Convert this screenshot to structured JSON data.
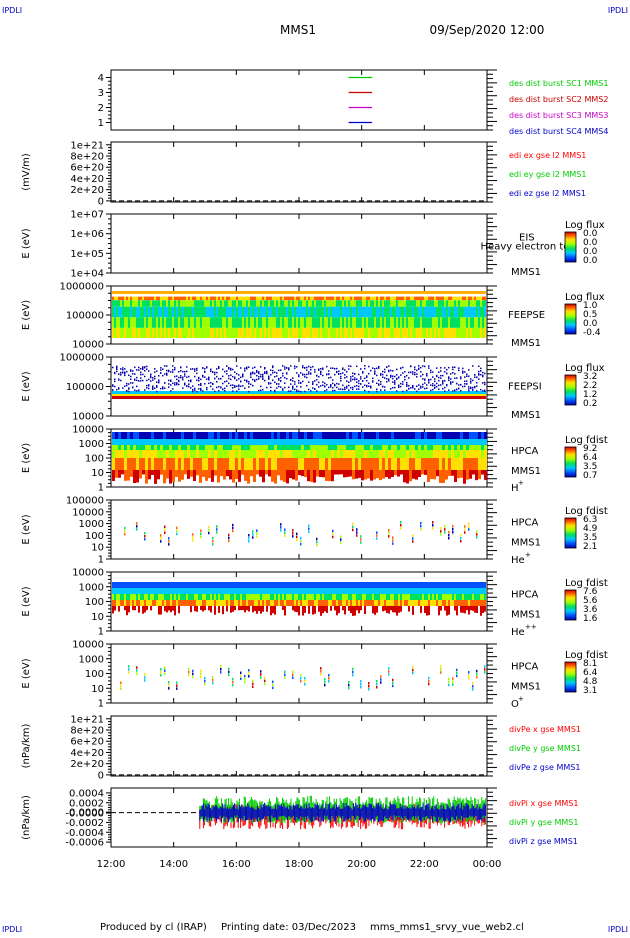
{
  "header": {
    "corner_text": "IPDLI",
    "spacecraft": "MMS1",
    "datetime": "09/Sep/2020 12:00"
  },
  "footer": {
    "produced_by": "Produced by cl (IRAP)",
    "printing_date": "Printing date: 03/Dec/2023",
    "filename": "mms_mms1_srvy_vue_web2.cl"
  },
  "colors": {
    "red": "#ff0000",
    "green": "#00cc00",
    "magenta": "#dd00dd",
    "blue": "#0000cc",
    "sc1": "#00cc00",
    "sc2": "#cc0000",
    "sc3": "#cc00cc",
    "sc4": "#0000cc"
  },
  "chart_data": {
    "type": "multi-panel",
    "x_tick_labels": [
      "12:00",
      "14:00",
      "16:00",
      "18:00",
      "20:00",
      "22:00",
      "00:00"
    ],
    "x_range": [
      "12:00",
      "00:00"
    ],
    "panels": [
      {
        "id": "burst",
        "type": "line",
        "ylabel": "",
        "ytick_labels": [
          "1",
          "2",
          "3",
          "4"
        ],
        "ylim": [
          0.5,
          4.5
        ],
        "series": [
          {
            "name": "des dist burst SC1 MMS1",
            "value": 4,
            "color": "#00cc00"
          },
          {
            "name": "des dist burst SC2 MMS2",
            "value": 3,
            "color": "#cc0000"
          },
          {
            "name": "des dist burst SC3 MMS3",
            "value": 2,
            "color": "#cc00cc"
          },
          {
            "name": "des dist burst SC4 MMS4",
            "value": 1,
            "color": "#0000cc"
          }
        ],
        "x_segment": [
          "19:35",
          "20:20"
        ]
      },
      {
        "id": "edi",
        "type": "line",
        "ylabel": "(mV/m)",
        "ytick_labels": [
          "0",
          "2e+20",
          "4e+20",
          "6e+20",
          "8e+20",
          "1e+21"
        ],
        "ylim": [
          -2e+19,
          1.05e+21
        ],
        "legend": [
          "edi ex gse l2 MMS1",
          "edi ey gse l2 MMS1",
          "edi ez gse l2 MMS1"
        ],
        "legend_colors": [
          "#ff0000",
          "#00cc00",
          "#0000cc"
        ]
      },
      {
        "id": "eis",
        "type": "heatmap",
        "ylabel": "E (eV)",
        "ytick_labels": [
          "1e+04",
          "1e+05",
          "1e+06",
          "1e+07"
        ],
        "scale": "log",
        "labels": [
          "EIS",
          "MMS1"
        ],
        "overlay_text": "Heavy electron to",
        "cbar_title": "Log flux",
        "cbar_ticks": [
          "0.0",
          "0.0",
          "0.0",
          "0.0"
        ]
      },
      {
        "id": "feepse",
        "type": "heatmap",
        "ylabel": "E (eV)",
        "ytick_labels": [
          "10000",
          "100000",
          "1000000"
        ],
        "scale": "log",
        "labels": [
          "FEEPSE",
          "MMS1"
        ],
        "cbar_title": "Log flux",
        "cbar_ticks": [
          "1.0",
          "0.5",
          "0.0",
          "-0.4"
        ]
      },
      {
        "id": "feepsi",
        "type": "heatmap",
        "ylabel": "E (eV)",
        "ytick_labels": [
          "10000",
          "100000",
          "1000000"
        ],
        "scale": "log",
        "labels": [
          "FEEPSI",
          "MMS1"
        ],
        "cbar_title": "Log flux",
        "cbar_ticks": [
          "3.2",
          "2.2",
          "1.2",
          "0.2"
        ]
      },
      {
        "id": "hpca_h",
        "type": "heatmap",
        "ylabel": "E (eV)",
        "ytick_labels": [
          "1",
          "10",
          "100",
          "1000",
          "10000"
        ],
        "scale": "log",
        "labels": [
          "HPCA",
          "MMS1"
        ],
        "species": "H",
        "charge": "+",
        "cbar_title": "Log fdist",
        "cbar_ticks": [
          "9.2",
          "6.4",
          "3.5",
          "0.7"
        ]
      },
      {
        "id": "hpca_he1",
        "type": "heatmap",
        "ylabel": "E (eV)",
        "ytick_labels": [
          "1",
          "10",
          "100",
          "1000",
          "10000",
          "100000"
        ],
        "scale": "log",
        "labels": [
          "HPCA",
          "MMS1"
        ],
        "species": "He",
        "charge": "+",
        "cbar_title": "Log fdist",
        "cbar_ticks": [
          "6.3",
          "4.9",
          "3.5",
          "2.1"
        ]
      },
      {
        "id": "hpca_he2",
        "type": "heatmap",
        "ylabel": "E (eV)",
        "ytick_labels": [
          "1",
          "10",
          "100",
          "1000",
          "10000"
        ],
        "scale": "log",
        "labels": [
          "HPCA",
          "MMS1"
        ],
        "species": "He",
        "charge": "++",
        "cbar_title": "Log fdist",
        "cbar_ticks": [
          "7.6",
          "5.6",
          "3.6",
          "1.6"
        ]
      },
      {
        "id": "hpca_o",
        "type": "heatmap",
        "ylabel": "E (eV)",
        "ytick_labels": [
          "1",
          "10",
          "100",
          "1000",
          "10000"
        ],
        "scale": "log",
        "labels": [
          "HPCA",
          "MMS1"
        ],
        "species": "O",
        "charge": "+",
        "cbar_title": "Log fdist",
        "cbar_ticks": [
          "8.1",
          "6.4",
          "4.8",
          "3.1"
        ]
      },
      {
        "id": "divpe",
        "type": "line",
        "ylabel": "(nPa/km)",
        "ytick_labels": [
          "0",
          "2e+20",
          "4e+20",
          "6e+20",
          "8e+20",
          "1e+21"
        ],
        "ylim": [
          -2e+19,
          1.05e+21
        ],
        "legend": [
          "divPe x gse MMS1",
          "divPe y gse MMS1",
          "divPe z gse MMS1"
        ],
        "legend_colors": [
          "#ff0000",
          "#00cc00",
          "#0000cc"
        ]
      },
      {
        "id": "divpi",
        "type": "line",
        "ylabel": "(nPa/km)",
        "ytick_labels": [
          "-0.0006",
          "-0.0004",
          "-0.0002",
          "-0.0000",
          "0.0000",
          "0.0002",
          "0.0004"
        ],
        "ylim": [
          -0.0007,
          0.0005
        ],
        "legend": [
          "divPi x gse MMS1",
          "divPi y gse MMS1",
          "divPi z gse MMS1"
        ],
        "legend_colors": [
          "#ff0000",
          "#00cc00",
          "#0000cc"
        ],
        "data_start": "14:50"
      }
    ]
  }
}
